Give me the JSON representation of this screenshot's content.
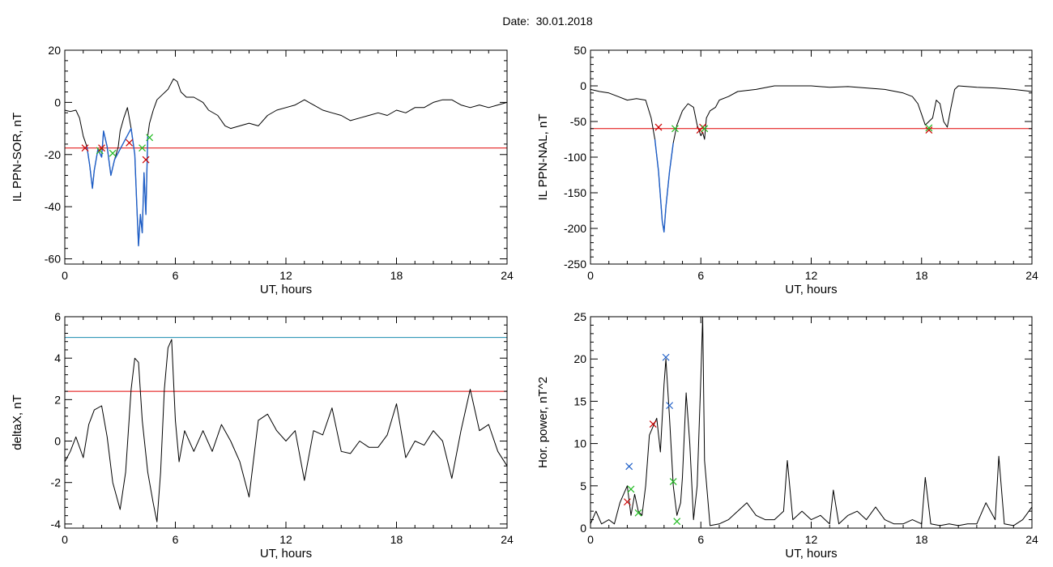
{
  "figure": {
    "title": "Date:  30.01.2018"
  },
  "chart_data": [
    {
      "type": "line",
      "id": "ppn-sor",
      "xlabel": "UT, hours",
      "ylabel": "IL PPN-SOR, nT",
      "xlim": [
        0,
        24
      ],
      "ylim": [
        -62,
        20
      ],
      "xticks": [
        0,
        6,
        12,
        18,
        24
      ],
      "yticks": [
        -60,
        -40,
        -20,
        0,
        20
      ],
      "grid": false,
      "series": [
        {
          "color": "#000000",
          "x": [
            0,
            0.3,
            0.6,
            0.8,
            1.0,
            1.2,
            1.35,
            1.5,
            1.6,
            1.8,
            2.0,
            2.1,
            2.3,
            2.5,
            2.7,
            2.9,
            3.0,
            3.2,
            3.4,
            3.6,
            3.8,
            3.9,
            4.0,
            4.1,
            4.2,
            4.3,
            4.4,
            4.5,
            4.6,
            4.8,
            5.0,
            5.3,
            5.6,
            5.9,
            6.1,
            6.3,
            6.6,
            7.0,
            7.5,
            7.8,
            8.3,
            8.7,
            9.0,
            9.5,
            10.0,
            10.5,
            11.0,
            11.5,
            12.0,
            12.5,
            13.0,
            13.5,
            14.0,
            14.5,
            15.0,
            15.5,
            16.0,
            16.5,
            17.0,
            17.5,
            18.0,
            18.5,
            19.0,
            19.5,
            20.0,
            20.5,
            21.0,
            21.5,
            22.0,
            22.5,
            23.0,
            23.5,
            24.0
          ],
          "y": [
            -3,
            -3.5,
            -3,
            -6,
            -13,
            -17,
            -24,
            -33,
            -26,
            -18,
            -21,
            -11,
            -17,
            -28,
            -22,
            -17,
            -11,
            -6,
            -2,
            -10,
            -20,
            -38,
            -55,
            -43,
            -50,
            -27,
            -43,
            -13,
            -8,
            -3,
            1,
            3,
            5,
            9,
            8,
            4,
            2,
            2,
            0,
            -3,
            -5,
            -9,
            -10,
            -9,
            -8,
            -9,
            -5,
            -3,
            -2,
            -1,
            1,
            -1,
            -3,
            -4,
            -5,
            -7,
            -6,
            -5,
            -4,
            -5,
            -3,
            -4,
            -2,
            -2,
            0,
            1,
            1,
            -1,
            -2,
            -1,
            -2,
            -1,
            0
          ]
        },
        {
          "color": "#1f5fc8",
          "x": [
            1.2,
            1.35,
            1.5,
            1.6,
            1.8,
            2.0,
            2.1,
            2.3,
            2.5,
            2.7,
            3.6,
            3.8,
            3.9,
            4.0,
            4.1,
            4.2,
            4.3,
            4.4,
            4.5
          ],
          "y": [
            -17,
            -24,
            -33,
            -26,
            -18,
            -21,
            -11,
            -17,
            -28,
            -22,
            -10,
            -20,
            -38,
            -55,
            -43,
            -50,
            -27,
            -43,
            -13
          ]
        }
      ],
      "threshold_lines": [
        {
          "y": -17.5,
          "color": "#e00000"
        }
      ],
      "markers": [
        {
          "x": 1.1,
          "y": -17.5,
          "color": "#cc0000"
        },
        {
          "x": 1.9,
          "y": -18.5,
          "color": "#22bb22"
        },
        {
          "x": 2.0,
          "y": -17.5,
          "color": "#cc0000"
        },
        {
          "x": 2.6,
          "y": -19.5,
          "color": "#22bb22"
        },
        {
          "x": 3.5,
          "y": -15.5,
          "color": "#cc0000"
        },
        {
          "x": 4.2,
          "y": -17.5,
          "color": "#22bb22"
        },
        {
          "x": 4.4,
          "y": -22,
          "color": "#cc0000"
        },
        {
          "x": 4.6,
          "y": -13.5,
          "color": "#22bb22"
        }
      ]
    },
    {
      "type": "line",
      "id": "ppn-nal",
      "xlabel": "UT, hours",
      "ylabel": "IL PPN-NAL, nT",
      "xlim": [
        0,
        24
      ],
      "ylim": [
        -250,
        50
      ],
      "xticks": [
        0,
        6,
        12,
        18,
        24
      ],
      "yticks": [
        -250,
        -200,
        -150,
        -100,
        -50,
        0,
        50
      ],
      "grid": false,
      "series": [
        {
          "color": "#000000",
          "x": [
            0,
            0.5,
            1.0,
            1.5,
            2.0,
            2.5,
            3.0,
            3.3,
            3.5,
            3.7,
            3.9,
            4.0,
            4.1,
            4.3,
            4.5,
            4.7,
            5.0,
            5.3,
            5.6,
            5.8,
            6.0,
            6.1,
            6.2,
            6.3,
            6.5,
            6.8,
            7.0,
            7.5,
            8.0,
            9.0,
            10.0,
            11.0,
            12.0,
            13.0,
            14.0,
            15.0,
            16.0,
            17.0,
            17.5,
            17.8,
            18.0,
            18.2,
            18.4,
            18.6,
            18.8,
            19.0,
            19.2,
            19.4,
            19.6,
            19.8,
            20.0,
            21.0,
            22.0,
            23.0,
            24.0
          ],
          "y": [
            -5,
            -8,
            -10,
            -15,
            -20,
            -18,
            -20,
            -45,
            -75,
            -120,
            -190,
            -205,
            -170,
            -120,
            -80,
            -55,
            -35,
            -25,
            -30,
            -55,
            -70,
            -65,
            -75,
            -45,
            -35,
            -30,
            -20,
            -15,
            -8,
            -5,
            0,
            0,
            0,
            -2,
            -1,
            -3,
            -5,
            -10,
            -15,
            -25,
            -40,
            -55,
            -50,
            -45,
            -20,
            -25,
            -50,
            -58,
            -30,
            -5,
            0,
            -2,
            -3,
            -5,
            -8
          ]
        },
        {
          "color": "#1f5fc8",
          "x": [
            3.5,
            3.7,
            3.9,
            4.0,
            4.1,
            4.3,
            4.5
          ],
          "y": [
            -75,
            -120,
            -190,
            -205,
            -170,
            -120,
            -80
          ]
        }
      ],
      "threshold_lines": [
        {
          "y": -60,
          "color": "#e00000"
        }
      ],
      "markers": [
        {
          "x": 3.7,
          "y": -58,
          "color": "#cc0000"
        },
        {
          "x": 4.6,
          "y": -60,
          "color": "#22bb22"
        },
        {
          "x": 5.95,
          "y": -62,
          "color": "#cc0000"
        },
        {
          "x": 6.1,
          "y": -58,
          "color": "#cc0000"
        },
        {
          "x": 6.2,
          "y": -60,
          "color": "#22bb22"
        },
        {
          "x": 18.4,
          "y": -62,
          "color": "#cc0000"
        },
        {
          "x": 18.4,
          "y": -59,
          "color": "#22bb22"
        }
      ]
    },
    {
      "type": "line",
      "id": "deltax",
      "xlabel": "UT, hours",
      "ylabel": "deltaX, nT",
      "xlim": [
        0,
        24
      ],
      "ylim": [
        -4.2,
        6
      ],
      "xticks": [
        0,
        6,
        12,
        18,
        24
      ],
      "yticks": [
        -4,
        -2,
        0,
        2,
        4,
        6
      ],
      "grid": false,
      "series": [
        {
          "color": "#000000",
          "x": [
            0,
            0.3,
            0.6,
            1.0,
            1.3,
            1.6,
            2.0,
            2.3,
            2.6,
            3.0,
            3.3,
            3.6,
            3.8,
            4.0,
            4.2,
            4.5,
            4.8,
            5.0,
            5.2,
            5.4,
            5.6,
            5.8,
            6.0,
            6.2,
            6.5,
            7.0,
            7.5,
            8.0,
            8.5,
            9.0,
            9.5,
            10.0,
            10.5,
            11.0,
            11.5,
            12.0,
            12.5,
            13.0,
            13.5,
            14.0,
            14.5,
            15.0,
            15.5,
            16.0,
            16.5,
            17.0,
            17.5,
            18.0,
            18.5,
            19.0,
            19.5,
            20.0,
            20.5,
            21.0,
            21.5,
            22.0,
            22.5,
            23.0,
            23.5,
            24.0
          ],
          "y": [
            -1,
            -0.5,
            0.2,
            -0.8,
            0.8,
            1.5,
            1.7,
            0.2,
            -2,
            -3.3,
            -1.5,
            2.5,
            4.0,
            3.8,
            1.0,
            -1.5,
            -3.0,
            -3.9,
            -1.5,
            2.5,
            4.5,
            4.9,
            1.0,
            -1.0,
            0.5,
            -0.5,
            0.5,
            -0.5,
            0.8,
            0.0,
            -1.0,
            -2.7,
            1.0,
            1.3,
            0.5,
            0.0,
            0.5,
            -1.9,
            0.5,
            0.3,
            1.6,
            -0.5,
            -0.6,
            0.0,
            -0.3,
            -0.3,
            0.3,
            1.8,
            -0.8,
            0.0,
            -0.2,
            0.5,
            0.0,
            -1.8,
            0.5,
            2.5,
            0.5,
            0.8,
            -0.5,
            -1.2
          ]
        }
      ],
      "threshold_lines": [
        {
          "y": 5.0,
          "color": "#1a8cb0"
        },
        {
          "y": 2.4,
          "color": "#e00000"
        }
      ],
      "markers": []
    },
    {
      "type": "line",
      "id": "hor-power",
      "xlabel": "UT, hours",
      "ylabel": "Hor. power, nT^2",
      "xlim": [
        0,
        24
      ],
      "ylim": [
        0,
        25
      ],
      "xticks": [
        0,
        6,
        12,
        18,
        24
      ],
      "yticks": [
        0,
        5,
        10,
        15,
        20,
        25
      ],
      "grid": false,
      "series": [
        {
          "color": "#000000",
          "x": [
            0,
            0.3,
            0.6,
            1.0,
            1.3,
            1.6,
            2.0,
            2.2,
            2.4,
            2.6,
            2.8,
            3.0,
            3.2,
            3.4,
            3.6,
            3.8,
            4.0,
            4.1,
            4.3,
            4.5,
            4.7,
            4.9,
            5.0,
            5.2,
            5.4,
            5.6,
            5.8,
            6.0,
            6.1,
            6.2,
            6.5,
            7.0,
            7.5,
            8.0,
            8.5,
            9.0,
            9.5,
            10.0,
            10.5,
            10.7,
            11.0,
            11.5,
            12.0,
            12.5,
            13.0,
            13.2,
            13.5,
            14.0,
            14.5,
            15.0,
            15.5,
            16.0,
            16.5,
            17.0,
            17.5,
            18.0,
            18.2,
            18.5,
            19.0,
            19.5,
            20.0,
            20.5,
            21.0,
            21.5,
            22.0,
            22.2,
            22.5,
            23.0,
            23.5,
            24.0
          ],
          "y": [
            0.5,
            2.0,
            0.5,
            1.0,
            0.5,
            3.0,
            5.0,
            1.5,
            4.0,
            2.0,
            1.5,
            5.0,
            11.0,
            12.0,
            13.0,
            9.0,
            17.0,
            20.0,
            13.0,
            5.0,
            1.5,
            3.0,
            6.0,
            16.0,
            10.0,
            1.0,
            5.0,
            18.0,
            25.0,
            8.0,
            0.3,
            0.5,
            1.0,
            2.0,
            3.0,
            1.5,
            1.0,
            1.0,
            2.0,
            8.0,
            1.0,
            2.0,
            1.0,
            1.5,
            0.5,
            4.5,
            0.5,
            1.5,
            2.0,
            1.0,
            2.5,
            1.0,
            0.5,
            0.5,
            1.0,
            0.5,
            6.0,
            0.5,
            0.3,
            0.5,
            0.3,
            0.5,
            0.5,
            3.0,
            1.0,
            8.5,
            0.5,
            0.3,
            1.0,
            2.5
          ]
        }
      ],
      "threshold_lines": [
        {
          "y": 25,
          "color": "#e00000"
        }
      ],
      "markers": [
        {
          "x": 2.1,
          "y": 7.3,
          "color": "#1f5fc8"
        },
        {
          "x": 2.0,
          "y": 3.1,
          "color": "#cc0000"
        },
        {
          "x": 2.2,
          "y": 4.6,
          "color": "#22bb22"
        },
        {
          "x": 2.6,
          "y": 1.8,
          "color": "#22bb22"
        },
        {
          "x": 3.4,
          "y": 12.3,
          "color": "#cc0000"
        },
        {
          "x": 4.1,
          "y": 20.2,
          "color": "#1f5fc8"
        },
        {
          "x": 4.3,
          "y": 14.5,
          "color": "#1f5fc8"
        },
        {
          "x": 4.5,
          "y": 5.5,
          "color": "#22bb22"
        },
        {
          "x": 4.7,
          "y": 0.8,
          "color": "#22bb22"
        }
      ]
    }
  ]
}
